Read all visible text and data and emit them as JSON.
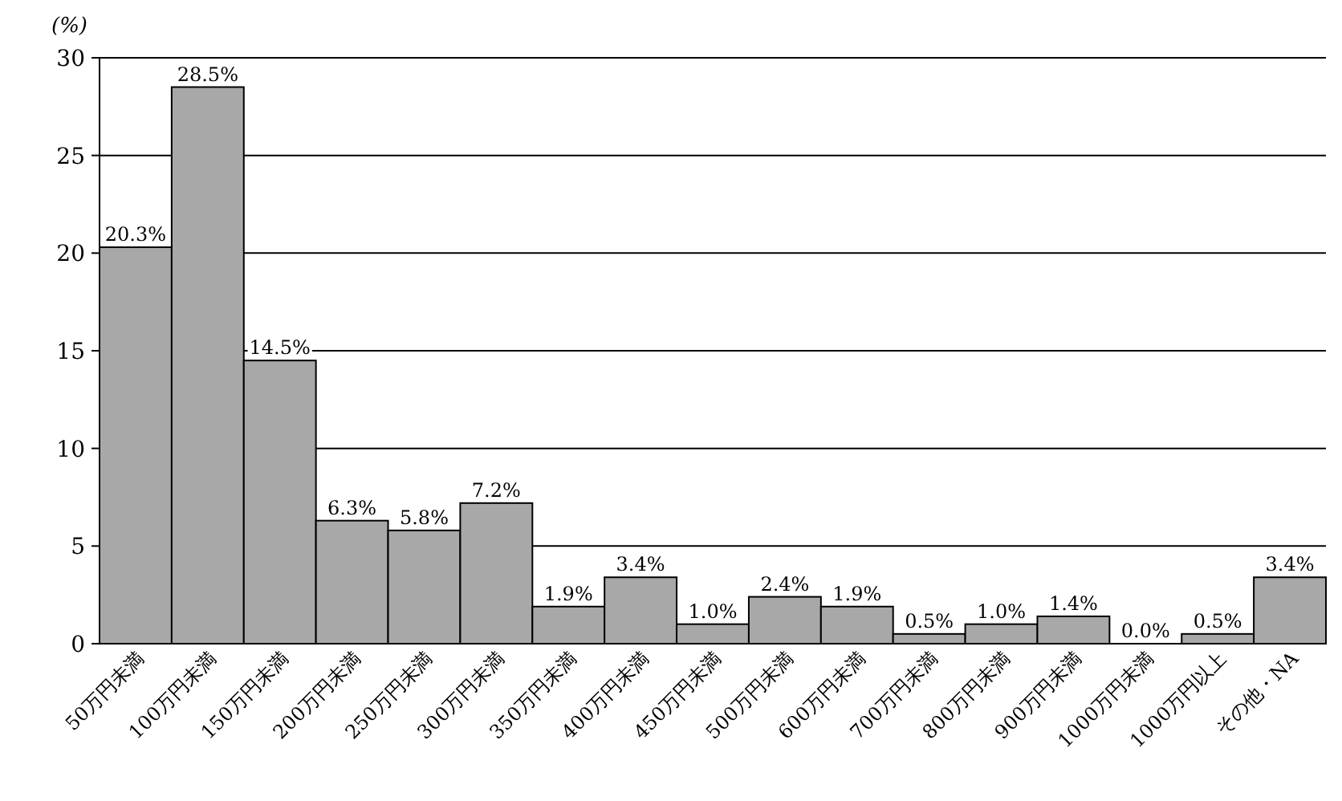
{
  "chart_data": {
    "type": "bar",
    "ylabel": "(%)",
    "categories": [
      "50万円未満",
      "100万円未満",
      "150万円未満",
      "200万円未満",
      "250万円未満",
      "300万円未満",
      "350万円未満",
      "400万円未満",
      "450万円未満",
      "500万円未満",
      "600万円未満",
      "700万円未満",
      "800万円未満",
      "900万円未満",
      "1000万円未満",
      "1000万円以上",
      "その他・NA"
    ],
    "values": [
      20.3,
      28.5,
      14.5,
      6.3,
      5.8,
      7.2,
      1.9,
      3.4,
      1.0,
      2.4,
      1.9,
      0.5,
      1.0,
      1.4,
      0.0,
      0.5,
      3.4
    ],
    "value_labels": [
      "20.3%",
      "28.5%",
      "14.5%",
      "6.3%",
      "5.8%",
      "7.2%",
      "1.9%",
      "3.4%",
      "1.0%",
      "2.4%",
      "1.9%",
      "0.5%",
      "1.0%",
      "1.4%",
      "0.0%",
      "0.5%",
      "3.4%"
    ],
    "color": "#a8a8a8",
    "ylim": [
      0,
      30
    ],
    "yticks": [
      0,
      5,
      10,
      15,
      20,
      25,
      30
    ],
    "grid": "y"
  }
}
